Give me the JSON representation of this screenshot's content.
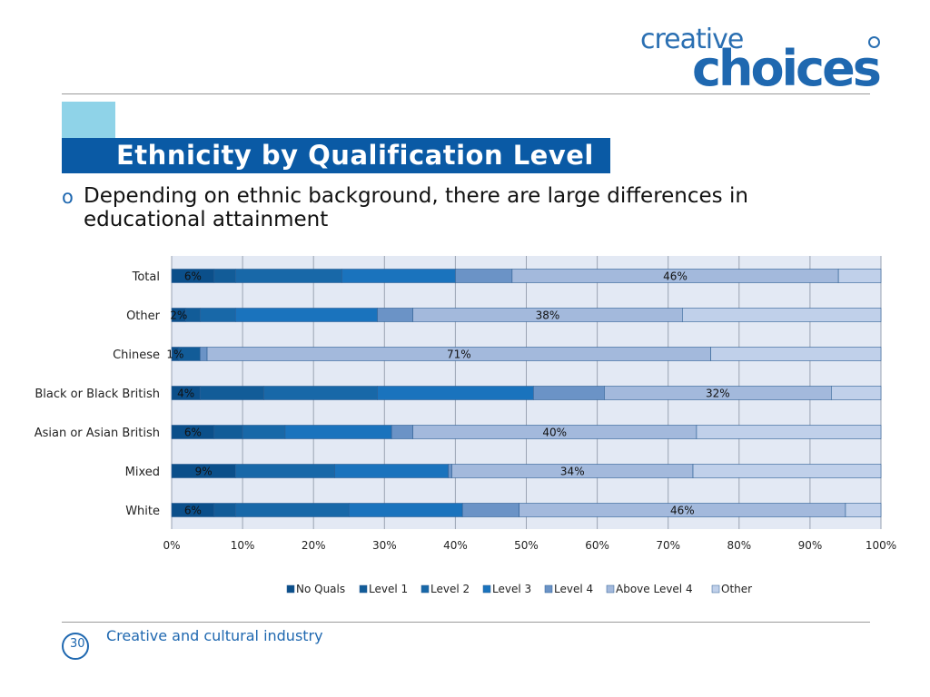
{
  "logo": {
    "line1": "creative",
    "line2": "choices"
  },
  "slide": {
    "title": "Ethnicity by Qualification Level",
    "bullet_marker": "o",
    "bullet": "Depending on ethnic background, there are large differences in educational attainment",
    "footer": "Creative and cultural industry",
    "page_number": "30"
  },
  "colors": {
    "accent_box": "#8fd3e8",
    "title_bar": "#0a5aa5",
    "plot_bg": "#e3e9f4",
    "series": [
      "#0b4f8a",
      "#125c98",
      "#1868a8",
      "#1a73bd",
      "#6b93c6",
      "#a3b9dc",
      "#c0d0ea"
    ]
  },
  "chart_data": {
    "type": "bar",
    "orientation": "horizontal",
    "stacked": true,
    "categories": [
      "Total",
      "Other",
      "Chinese",
      "Black or Black British",
      "Asian or Asian British",
      "Mixed",
      "White"
    ],
    "series": [
      {
        "name": "No Quals",
        "values": [
          6,
          2,
          1,
          4,
          6,
          9,
          6
        ]
      },
      {
        "name": "Level 1",
        "values": [
          3,
          2,
          3,
          9,
          4,
          0,
          3
        ]
      },
      {
        "name": "Level 2",
        "values": [
          15,
          5,
          0,
          16,
          6,
          14,
          16
        ]
      },
      {
        "name": "Level 3",
        "values": [
          16,
          20,
          0,
          22,
          15,
          16,
          16
        ]
      },
      {
        "name": "Level 4",
        "values": [
          8,
          5,
          1,
          10,
          3,
          0.5,
          8
        ]
      },
      {
        "name": "Above Level 4",
        "values": [
          46,
          38,
          71,
          32,
          40,
          34,
          46
        ]
      },
      {
        "name": "Other",
        "values": [
          6,
          28,
          24,
          7,
          26,
          26.5,
          5
        ]
      }
    ],
    "data_labels": [
      {
        "category": "Total",
        "series": "No Quals",
        "text": "6%"
      },
      {
        "category": "Total",
        "series": "Above Level 4",
        "text": "46%"
      },
      {
        "category": "Other",
        "series": "No Quals",
        "text": "2%"
      },
      {
        "category": "Other",
        "series": "Above Level 4",
        "text": "38%"
      },
      {
        "category": "Chinese",
        "series": "No Quals",
        "text": "1%"
      },
      {
        "category": "Chinese",
        "series": "Above Level 4",
        "text": "71%"
      },
      {
        "category": "Black or Black British",
        "series": "No Quals",
        "text": "4%"
      },
      {
        "category": "Black or Black British",
        "series": "Above Level 4",
        "text": "32%"
      },
      {
        "category": "Asian or Asian British",
        "series": "No Quals",
        "text": "6%"
      },
      {
        "category": "Asian or Asian British",
        "series": "Above Level 4",
        "text": "40%"
      },
      {
        "category": "Mixed",
        "series": "No Quals",
        "text": "9%"
      },
      {
        "category": "Mixed",
        "series": "Above Level 4",
        "text": "34%"
      },
      {
        "category": "White",
        "series": "No Quals",
        "text": "6%"
      },
      {
        "category": "White",
        "series": "Above Level 4",
        "text": "46%"
      }
    ],
    "xticks": [
      "0%",
      "10%",
      "20%",
      "30%",
      "40%",
      "50%",
      "60%",
      "70%",
      "80%",
      "90%",
      "100%"
    ],
    "xlim": [
      0,
      100
    ],
    "grid": true,
    "legend_position": "bottom"
  }
}
